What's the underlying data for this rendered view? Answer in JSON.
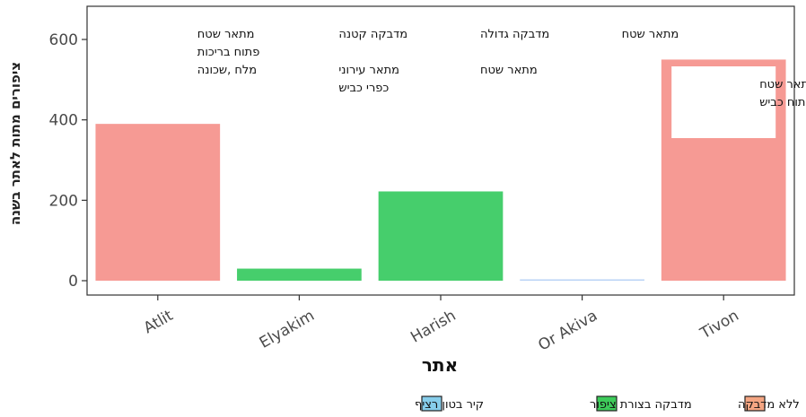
{
  "chart_data": {
    "type": "bar",
    "xlabel": "אתר",
    "ylabel": "ציפורים מתות לאתר בשנה",
    "categories": [
      "Atlit",
      "Elyakim",
      "Harish",
      "Or Akiva",
      "Tivon"
    ],
    "values": [
      390,
      30,
      222,
      3,
      550
    ],
    "bar_types": [
      "ללא מדבקה",
      "מדבקה בצורת ציפור",
      "מדבקה בצורת ציפור",
      "קיר בטון רציף",
      "ללא מדבקה"
    ],
    "ylim": [
      0,
      650
    ],
    "yticks": [
      0,
      200,
      400,
      600
    ],
    "grid": false,
    "legend": {
      "placement": "bottom",
      "items": [
        {
          "label": "ללא מדבקה",
          "color": "#F4A582"
        },
        {
          "label": "מדבקה בצורת ציפור",
          "color": "#3DCB5A"
        },
        {
          "label": "קיר בטון רציף",
          "color": "#87CEEB"
        }
      ]
    },
    "colors": {
      "ללא מדבקה": "#F69A94",
      "מדבקה בצורת ציפור": "#46CE6C",
      "קיר בטון רציף": "#B9D3F5"
    },
    "annotations": [
      {
        "category": "Atlit",
        "lines": [
          "מתאר שטח",
          "פתוח בריכות",
          "מלח ,שכונה"
        ]
      },
      {
        "category": "Elyakim",
        "lines": [
          "מדבקה קטנה",
          "",
          "מתאר עירוני",
          "כפרי כביש"
        ]
      },
      {
        "category": "Harish",
        "lines": [
          "מדבקה גדולה",
          "",
          "מתאר שטח"
        ]
      },
      {
        "category": "Or Akiva",
        "lines": [
          "מתאר שטח"
        ]
      },
      {
        "category": "Tivon",
        "lines": [
          "מתאר שטח",
          "פתוח כביש"
        ]
      }
    ]
  }
}
